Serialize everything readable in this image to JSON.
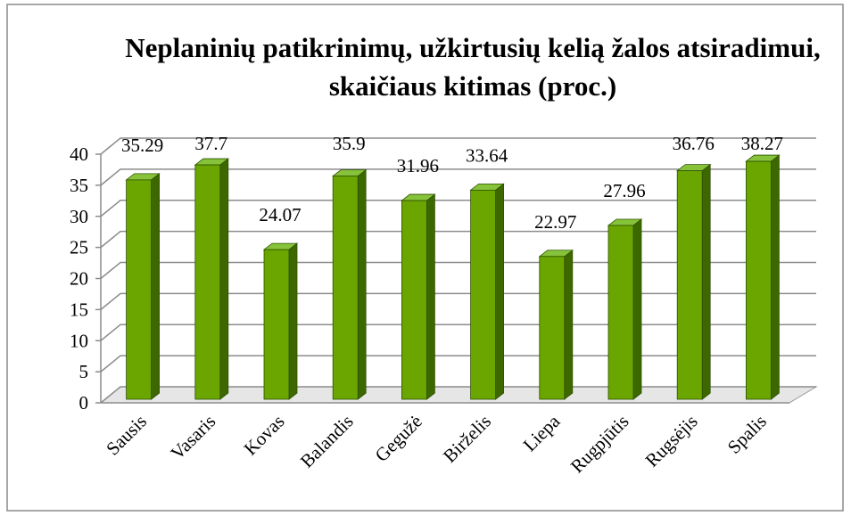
{
  "chart_data": {
    "type": "bar3d",
    "title": "Neplaninių patikrinimų, užkirtusių kelią žalos atsiradimui, skaičiaus kitimas (proc.)",
    "categories": [
      "Sausis",
      "Vasaris",
      "Kovas",
      "Balandis",
      "Gegužė",
      "Birželis",
      "Liepa",
      "Rugpjūtis",
      "Rugsėjis",
      "Spalis"
    ],
    "values": [
      35.29,
      37.7,
      24.07,
      35.9,
      31.96,
      33.64,
      22.97,
      27.96,
      36.76,
      38.27
    ],
    "color": "#6aa500",
    "ylim": [
      0,
      40
    ],
    "yticks": [
      0,
      5,
      10,
      15,
      20,
      25,
      30,
      35,
      40
    ],
    "grid": true
  }
}
